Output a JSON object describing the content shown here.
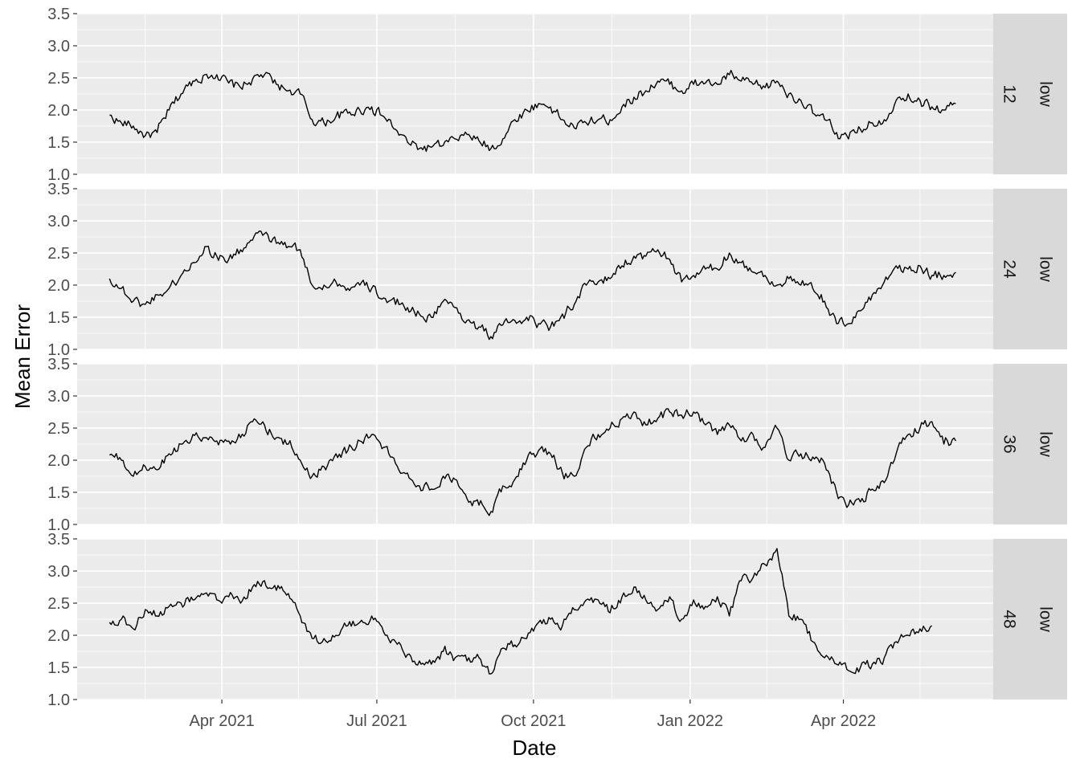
{
  "chart_data": {
    "type": "line",
    "xlabel": "Date",
    "ylabel": "Mean Error",
    "ylim": [
      1.0,
      3.5
    ],
    "xlim": [
      "2021-01-06",
      "2022-06-28"
    ],
    "y_ticks": [
      1.0,
      1.5,
      2.0,
      2.5,
      3.0,
      3.5
    ],
    "y_tick_labels": [
      "1.0",
      "1.5",
      "2.0",
      "2.5",
      "3.0",
      "3.5"
    ],
    "x_ticks": [
      {
        "date": "2021-04-01",
        "label": "Apr 2021"
      },
      {
        "date": "2021-07-01",
        "label": "Jul 2021"
      },
      {
        "date": "2021-10-01",
        "label": "Oct 2021"
      },
      {
        "date": "2022-01-01",
        "label": "Jan 2022"
      },
      {
        "date": "2022-04-01",
        "label": "Apr 2022"
      }
    ],
    "x_minor_ticks": [
      "2021-02-15",
      "2021-05-16",
      "2021-08-16",
      "2021-11-16",
      "2022-02-15",
      "2022-05-16"
    ],
    "grid": true,
    "facet_strip_secondary": "low",
    "panels": [
      {
        "facet": "12",
        "series": [
          {
            "color": "#000000",
            "x": [
              "2021-01-25",
              "2021-02-01",
              "2021-02-08",
              "2021-02-15",
              "2021-02-22",
              "2021-03-01",
              "2021-03-08",
              "2021-03-15",
              "2021-03-22",
              "2021-03-29",
              "2021-04-05",
              "2021-04-12",
              "2021-04-19",
              "2021-04-26",
              "2021-05-03",
              "2021-05-10",
              "2021-05-17",
              "2021-05-24",
              "2021-05-31",
              "2021-06-07",
              "2021-06-14",
              "2021-06-21",
              "2021-06-28",
              "2021-07-05",
              "2021-07-12",
              "2021-07-19",
              "2021-07-26",
              "2021-08-02",
              "2021-08-09",
              "2021-08-16",
              "2021-08-23",
              "2021-08-30",
              "2021-09-06",
              "2021-09-13",
              "2021-09-20",
              "2021-09-27",
              "2021-10-04",
              "2021-10-11",
              "2021-10-18",
              "2021-10-25",
              "2021-11-01",
              "2021-11-08",
              "2021-11-15",
              "2021-11-22",
              "2021-11-29",
              "2021-12-06",
              "2021-12-13",
              "2021-12-20",
              "2021-12-27",
              "2022-01-03",
              "2022-01-10",
              "2022-01-17",
              "2022-01-24",
              "2022-01-31",
              "2022-02-07",
              "2022-02-14",
              "2022-02-21",
              "2022-02-28",
              "2022-03-07",
              "2022-03-14",
              "2022-03-21",
              "2022-03-28",
              "2022-04-04",
              "2022-04-11",
              "2022-04-18",
              "2022-04-25",
              "2022-05-02",
              "2022-05-09",
              "2022-05-16",
              "2022-05-23",
              "2022-05-30",
              "2022-06-06"
            ],
            "y": [
              1.92,
              1.8,
              1.75,
              1.6,
              1.65,
              2.0,
              2.25,
              2.45,
              2.55,
              2.55,
              2.42,
              2.35,
              2.48,
              2.55,
              2.4,
              2.3,
              2.25,
              1.85,
              1.8,
              1.9,
              1.95,
              2.0,
              2.05,
              1.9,
              1.7,
              1.5,
              1.4,
              1.42,
              1.45,
              1.55,
              1.62,
              1.52,
              1.4,
              1.55,
              1.85,
              2.0,
              2.1,
              2.05,
              1.85,
              1.72,
              1.8,
              1.85,
              1.85,
              2.05,
              2.2,
              2.3,
              2.45,
              2.4,
              2.3,
              2.4,
              2.42,
              2.4,
              2.55,
              2.45,
              2.4,
              2.35,
              2.45,
              2.25,
              2.15,
              1.95,
              1.85,
              1.65,
              1.55,
              1.7,
              1.8,
              1.85,
              2.15,
              2.25,
              2.15,
              2.05,
              2.0,
              2.1
            ]
          }
        ]
      },
      {
        "facet": "24",
        "series": [
          {
            "color": "#000000",
            "x": [
              "2021-01-25",
              "2021-02-01",
              "2021-02-08",
              "2021-02-15",
              "2021-02-22",
              "2021-03-01",
              "2021-03-08",
              "2021-03-15",
              "2021-03-22",
              "2021-03-29",
              "2021-04-05",
              "2021-04-12",
              "2021-04-19",
              "2021-04-26",
              "2021-05-03",
              "2021-05-10",
              "2021-05-17",
              "2021-05-24",
              "2021-05-31",
              "2021-06-07",
              "2021-06-14",
              "2021-06-21",
              "2021-06-28",
              "2021-07-05",
              "2021-07-12",
              "2021-07-19",
              "2021-07-26",
              "2021-08-02",
              "2021-08-09",
              "2021-08-16",
              "2021-08-23",
              "2021-08-30",
              "2021-09-06",
              "2021-09-13",
              "2021-09-20",
              "2021-09-27",
              "2021-10-04",
              "2021-10-11",
              "2021-10-18",
              "2021-10-25",
              "2021-11-01",
              "2021-11-08",
              "2021-11-15",
              "2021-11-22",
              "2021-11-29",
              "2021-12-06",
              "2021-12-13",
              "2021-12-20",
              "2021-12-27",
              "2022-01-03",
              "2022-01-10",
              "2022-01-17",
              "2022-01-24",
              "2022-01-31",
              "2022-02-07",
              "2022-02-14",
              "2022-02-21",
              "2022-02-28",
              "2022-03-07",
              "2022-03-14",
              "2022-03-21",
              "2022-03-28",
              "2022-04-04",
              "2022-04-11",
              "2022-04-18",
              "2022-04-25",
              "2022-05-02",
              "2022-05-09",
              "2022-05-16",
              "2022-05-23",
              "2022-05-30",
              "2022-06-06"
            ],
            "y": [
              2.1,
              1.95,
              1.75,
              1.7,
              1.85,
              1.95,
              2.15,
              2.35,
              2.6,
              2.45,
              2.4,
              2.55,
              2.7,
              2.8,
              2.65,
              2.6,
              2.55,
              2.0,
              2.0,
              2.05,
              1.95,
              2.0,
              1.95,
              1.8,
              1.7,
              1.65,
              1.55,
              1.5,
              1.75,
              1.65,
              1.45,
              1.35,
              1.2,
              1.38,
              1.45,
              1.5,
              1.4,
              1.35,
              1.55,
              1.7,
              2.0,
              2.05,
              2.1,
              2.3,
              2.45,
              2.45,
              2.55,
              2.4,
              2.05,
              2.15,
              2.25,
              2.25,
              2.5,
              2.35,
              2.2,
              2.15,
              2.0,
              2.1,
              2.0,
              1.95,
              1.75,
              1.4,
              1.4,
              1.6,
              1.85,
              2.05,
              2.3,
              2.25,
              2.3,
              2.15,
              2.15,
              2.2
            ]
          }
        ]
      },
      {
        "facet": "36",
        "series": [
          {
            "color": "#000000",
            "x": [
              "2021-01-25",
              "2021-02-01",
              "2021-02-08",
              "2021-02-15",
              "2021-02-22",
              "2021-03-01",
              "2021-03-08",
              "2021-03-15",
              "2021-03-22",
              "2021-03-29",
              "2021-04-05",
              "2021-04-12",
              "2021-04-19",
              "2021-04-26",
              "2021-05-03",
              "2021-05-10",
              "2021-05-17",
              "2021-05-24",
              "2021-05-31",
              "2021-06-07",
              "2021-06-14",
              "2021-06-21",
              "2021-06-28",
              "2021-07-05",
              "2021-07-12",
              "2021-07-19",
              "2021-07-26",
              "2021-08-02",
              "2021-08-09",
              "2021-08-16",
              "2021-08-23",
              "2021-08-30",
              "2021-09-06",
              "2021-09-13",
              "2021-09-20",
              "2021-09-27",
              "2021-10-04",
              "2021-10-11",
              "2021-10-18",
              "2021-10-25",
              "2021-11-01",
              "2021-11-08",
              "2021-11-15",
              "2021-11-22",
              "2021-11-29",
              "2021-12-06",
              "2021-12-13",
              "2021-12-20",
              "2021-12-27",
              "2022-01-03",
              "2022-01-10",
              "2022-01-17",
              "2022-01-24",
              "2022-01-31",
              "2022-02-07",
              "2022-02-14",
              "2022-02-21",
              "2022-02-28",
              "2022-03-07",
              "2022-03-14",
              "2022-03-21",
              "2022-03-28",
              "2022-04-04",
              "2022-04-11",
              "2022-04-18",
              "2022-04-25",
              "2022-05-02",
              "2022-05-09",
              "2022-05-16",
              "2022-05-23",
              "2022-05-30",
              "2022-06-06"
            ],
            "y": [
              2.08,
              2.0,
              1.75,
              1.9,
              1.85,
              2.1,
              2.25,
              2.4,
              2.35,
              2.3,
              2.3,
              2.35,
              2.6,
              2.55,
              2.35,
              2.25,
              2.0,
              1.75,
              1.9,
              2.1,
              2.15,
              2.3,
              2.4,
              2.2,
              1.95,
              1.8,
              1.6,
              1.55,
              1.75,
              1.7,
              1.4,
              1.3,
              1.2,
              1.6,
              1.7,
              2.0,
              2.15,
              2.1,
              1.8,
              1.75,
              2.2,
              2.4,
              2.5,
              2.65,
              2.75,
              2.55,
              2.65,
              2.75,
              2.7,
              2.75,
              2.55,
              2.4,
              2.55,
              2.3,
              2.4,
              2.2,
              2.5,
              2.0,
              2.1,
              2.05,
              1.95,
              1.5,
              1.3,
              1.35,
              1.55,
              1.65,
              2.1,
              2.4,
              2.5,
              2.6,
              2.25,
              2.3
            ]
          }
        ]
      },
      {
        "facet": "48",
        "series": [
          {
            "color": "#000000",
            "x": [
              "2021-01-25",
              "2021-02-01",
              "2021-02-08",
              "2021-02-15",
              "2021-02-22",
              "2021-03-01",
              "2021-03-08",
              "2021-03-15",
              "2021-03-22",
              "2021-03-29",
              "2021-04-05",
              "2021-04-12",
              "2021-04-19",
              "2021-04-26",
              "2021-05-03",
              "2021-05-10",
              "2021-05-17",
              "2021-05-24",
              "2021-05-31",
              "2021-06-07",
              "2021-06-14",
              "2021-06-21",
              "2021-06-28",
              "2021-07-05",
              "2021-07-12",
              "2021-07-19",
              "2021-07-26",
              "2021-08-02",
              "2021-08-09",
              "2021-08-16",
              "2021-08-23",
              "2021-08-30",
              "2021-09-06",
              "2021-09-13",
              "2021-09-20",
              "2021-09-27",
              "2021-10-04",
              "2021-10-11",
              "2021-10-18",
              "2021-10-25",
              "2021-11-01",
              "2021-11-08",
              "2021-11-15",
              "2021-11-22",
              "2021-11-29",
              "2021-12-06",
              "2021-12-13",
              "2021-12-20",
              "2021-12-27",
              "2022-01-03",
              "2022-01-10",
              "2022-01-17",
              "2022-01-24",
              "2022-01-31",
              "2022-02-07",
              "2022-02-14",
              "2022-02-21",
              "2022-02-28",
              "2022-03-07",
              "2022-03-14",
              "2022-03-21",
              "2022-03-28",
              "2022-04-04",
              "2022-04-11",
              "2022-04-18",
              "2022-04-25",
              "2022-05-02",
              "2022-05-09",
              "2022-05-16",
              "2022-05-23"
            ],
            "y": [
              2.2,
              2.25,
              2.1,
              2.4,
              2.3,
              2.45,
              2.5,
              2.55,
              2.65,
              2.55,
              2.6,
              2.5,
              2.75,
              2.85,
              2.7,
              2.65,
              2.3,
              1.95,
              1.95,
              2.0,
              2.15,
              2.2,
              2.3,
              2.05,
              1.9,
              1.7,
              1.6,
              1.55,
              1.75,
              1.65,
              1.6,
              1.65,
              1.4,
              1.8,
              1.85,
              1.95,
              2.2,
              2.25,
              2.15,
              2.4,
              2.55,
              2.55,
              2.35,
              2.6,
              2.75,
              2.55,
              2.4,
              2.6,
              2.25,
              2.55,
              2.45,
              2.6,
              2.3,
              2.85,
              2.9,
              3.1,
              3.35,
              2.3,
              2.25,
              1.9,
              1.65,
              1.55,
              1.45,
              1.5,
              1.55,
              1.65,
              1.9,
              2.0,
              2.1,
              2.15
            ]
          }
        ]
      }
    ]
  }
}
